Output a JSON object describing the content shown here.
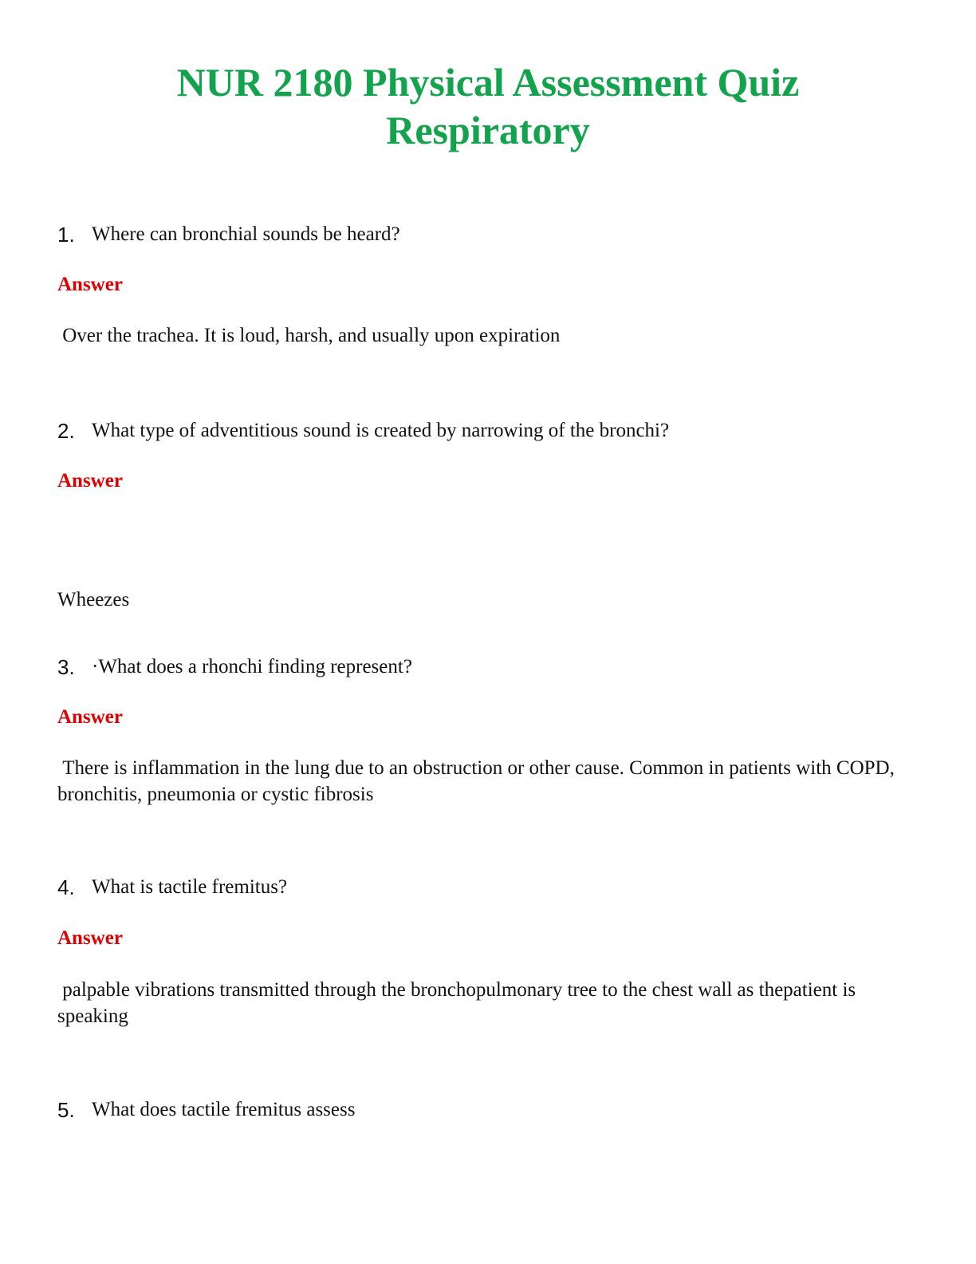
{
  "header": {
    "title_line1": "NUR 2180 Physical Assessment Quiz",
    "title_line2": "Respiratory"
  },
  "questions": [
    {
      "number": "1.",
      "question": "Where can bronchial sounds be heard?",
      "answer_label": "Answer",
      "answer": " Over the trachea. It is loud, harsh, and usually upon expiration"
    },
    {
      "number": "2.",
      "question": "What type of adventitious sound is created by narrowing of the bronchi?",
      "answer_label": "Answer",
      "answer": "Wheezes"
    },
    {
      "number": "3.",
      "question": "·What does a rhonchi finding represent?",
      "answer_label": "Answer",
      "answer": " There is inflammation in the lung due to an obstruction or other cause. Common in patients with COPD, bronchitis, pneumonia or cystic fibrosis"
    },
    {
      "number": "4.",
      "question": "What is tactile fremitus?",
      "answer_label": "Answer",
      "answer": " palpable vibrations transmitted through the bronchopulmonary tree to the chest wall as thepatient is speaking"
    },
    {
      "number": "5.",
      "question": "What does tactile fremitus assess"
    }
  ]
}
